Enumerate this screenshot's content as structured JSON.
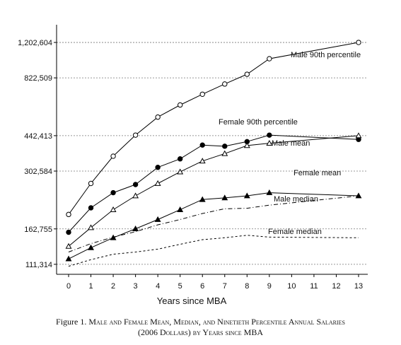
{
  "chart_data": {
    "type": "line",
    "xlabel": "Years since MBA",
    "x": [
      0,
      1,
      2,
      3,
      4,
      5,
      6,
      7,
      8,
      9,
      13
    ],
    "x_ticks": [
      "0",
      "1",
      "2",
      "3",
      "4",
      "5",
      "6",
      "7",
      "8",
      "9",
      "10",
      "11",
      "12",
      "13"
    ],
    "y_scale": "log",
    "y_ticks": [
      "111,314",
      "162,755",
      "302,584",
      "442,413",
      "822,509",
      "1,202,604"
    ],
    "y_tick_values": [
      111314,
      162755,
      302584,
      442413,
      822509,
      1202604
    ],
    "ylim": [
      100000,
      1400000
    ],
    "grid": "dashed horizontal at y ticks",
    "series": [
      {
        "name": "Male 90th percentile",
        "marker": "open-circle",
        "line": "solid",
        "values": [
          190000,
          265000,
          355000,
          445000,
          540000,
          615000,
          690000,
          770000,
          855000,
          1010000,
          1202604
        ]
      },
      {
        "name": "Female 90th percentile",
        "marker": "filled-circle",
        "line": "solid",
        "values": [
          157000,
          204000,
          240000,
          262000,
          315000,
          345000,
          400000,
          395000,
          415000,
          445000,
          425000
        ]
      },
      {
        "name": "Male mean",
        "marker": "open-triangle",
        "line": "solid",
        "values": [
          135000,
          165000,
          200000,
          232000,
          265000,
          300000,
          337000,
          365000,
          398000,
          408000,
          442413
        ]
      },
      {
        "name": "Female mean",
        "marker": "filled-triangle",
        "line": "solid",
        "values": [
          118000,
          133000,
          148000,
          163000,
          180000,
          200000,
          223000,
          227000,
          232000,
          240000,
          232000
        ]
      },
      {
        "name": "Male median",
        "marker": "none",
        "line": "dash-dot",
        "values": [
          127000,
          139000,
          149000,
          158000,
          170000,
          180000,
          192000,
          202000,
          203000,
          210000,
          232000
        ]
      },
      {
        "name": "Female median",
        "marker": "none",
        "line": "dashed",
        "values": [
          109000,
          117000,
          124000,
          127000,
          131000,
          138000,
          145000,
          148000,
          152000,
          149000,
          148000
        ]
      }
    ]
  },
  "caption": {
    "figure_label": "Figure 1.",
    "line1": "Male and Female Mean, Median, and Ninetieth Percentile Annual Salaries",
    "line2": "(2006 Dollars) by Years since MBA"
  }
}
